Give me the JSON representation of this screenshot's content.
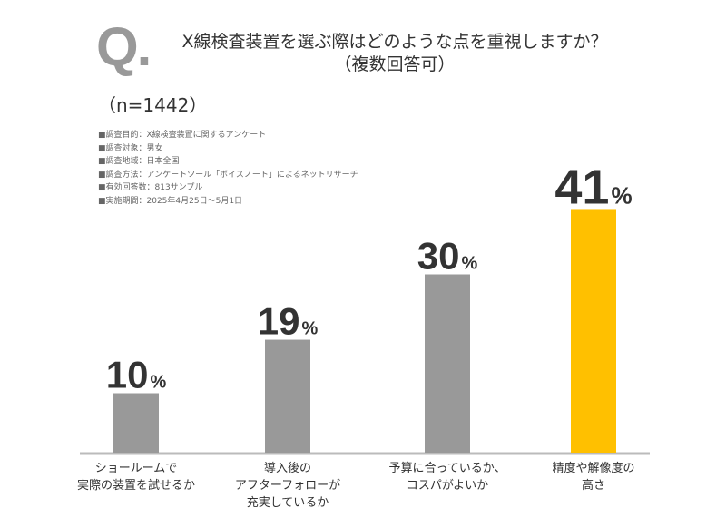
{
  "header": {
    "q_mark": "Q.",
    "question_line1": "X線検査装置を選ぶ際はどのような点を重視しますか？",
    "question_line2": "（複数回答可）",
    "sample_size": "（n=1442）"
  },
  "survey_info": [
    "■調査目的：X線検査装置に関するアンケート",
    "■調査対象：男女",
    "■調査地域：日本全国",
    "■調査方法：アンケートツール「ボイスノート」によるネットリサーチ",
    "■有効回答数：813サンプル",
    "■実施期間：2025年4月25日～5月1日"
  ],
  "colors": {
    "bar_default": "#999999",
    "bar_highlight": "#FFC000",
    "axis": "#BBBBBB",
    "value_text": "#333333",
    "q_mark": "#999999"
  },
  "chart_data": {
    "type": "bar",
    "categories": [
      [
        "ショールームで",
        "実際の装置を試せるか"
      ],
      [
        "導入後の",
        "アフターフォローが",
        "充実しているか"
      ],
      [
        "予算に合っているか、",
        "コスパがよいか"
      ],
      [
        "精度や解像度の",
        "高さ"
      ]
    ],
    "values": [
      10,
      19,
      30,
      41
    ],
    "unit": "%",
    "highlight_index": 3,
    "ylim": [
      0,
      50
    ],
    "grid": false,
    "legend": "none"
  }
}
